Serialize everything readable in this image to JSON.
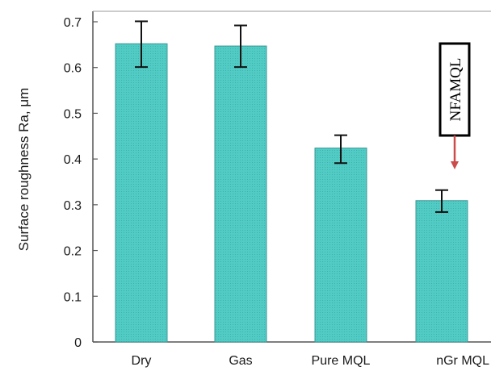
{
  "chart_data": {
    "type": "bar",
    "categories": [
      "Dry",
      "Gas",
      "Pure MQL",
      "nGr MQL"
    ],
    "values": [
      0.652,
      0.647,
      0.424,
      0.309
    ],
    "error_high": [
      0.701,
      0.692,
      0.452,
      0.332
    ],
    "error_low": [
      0.601,
      0.601,
      0.391,
      0.284
    ],
    "ylabel": "Surface roughness Ra, μm",
    "xlabel": "",
    "ylim": [
      0,
      0.7
    ],
    "yticks": [
      0,
      0.1,
      0.2,
      0.3,
      0.4,
      0.5,
      0.6,
      0.7
    ],
    "ytick_labels": [
      "0",
      "0.1",
      "0.2",
      "0.3",
      "0.4",
      "0.5",
      "0.6",
      "0.7"
    ],
    "grid": false,
    "bar_color": "#4fc9c3",
    "annotation": {
      "text": "NFAMQL",
      "target_category": "nGr MQL",
      "arrow_color": "#cc4b4b"
    }
  }
}
